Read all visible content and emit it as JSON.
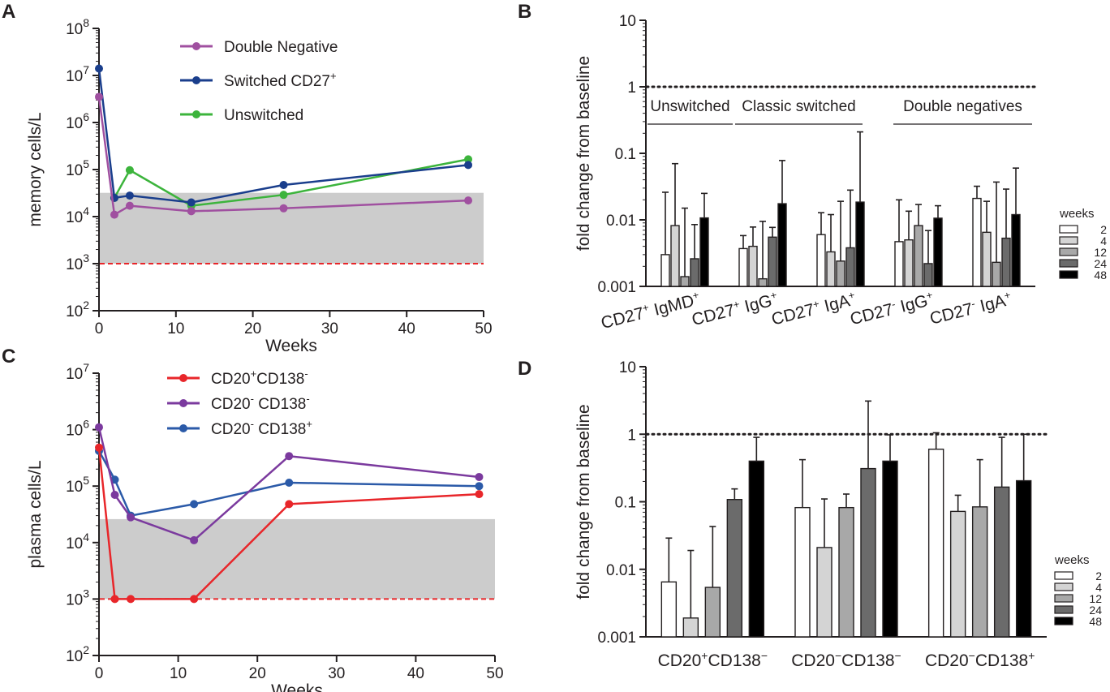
{
  "chart_data": [
    {
      "panel": "A",
      "type": "line",
      "xlabel": "Weeks",
      "ylabel": "memory cells/L",
      "yscale": "log",
      "xlim": [
        0,
        50
      ],
      "ylim": [
        100,
        100000000
      ],
      "xticks": [
        "0",
        "10",
        "20",
        "30",
        "40",
        "50"
      ],
      "yticks": [
        {
          "base": "10",
          "exp": "8"
        },
        {
          "base": "10",
          "exp": "7"
        },
        {
          "base": "10",
          "exp": "6"
        },
        {
          "base": "10",
          "exp": "5"
        },
        {
          "base": "10",
          "exp": "4"
        },
        {
          "base": "10",
          "exp": "3"
        },
        {
          "base": "10",
          "exp": "2"
        }
      ],
      "reference_band": [
        1000,
        32000
      ],
      "reference_line": 1000,
      "series": [
        {
          "name": "Double Negative",
          "color": "#a050a0",
          "legend": {
            "text": "Double Negative",
            "sup": ""
          },
          "x": [
            0,
            2,
            4,
            12,
            24,
            48
          ],
          "y": [
            3500000,
            11000,
            17000,
            13000,
            15000,
            22000
          ]
        },
        {
          "name": "Switched CD27+",
          "color": "#1a3e8c",
          "legend": {
            "text": "Switched CD27",
            "sup": "+"
          },
          "x": [
            0,
            2,
            4,
            12,
            24,
            48
          ],
          "y": [
            14000000,
            25000,
            28000,
            20000,
            47000,
            125000
          ]
        },
        {
          "name": "Unswitched",
          "color": "#3cb43c",
          "legend": {
            "text": "Unswitched",
            "sup": ""
          },
          "x": [
            2,
            4,
            12,
            24,
            48
          ],
          "y": [
            25000,
            97000,
            17000,
            29000,
            165000
          ]
        }
      ]
    },
    {
      "panel": "B",
      "type": "bar",
      "ylabel": "fold change from baseline",
      "yscale": "log",
      "ylim": [
        0.001,
        10
      ],
      "yticks": [
        "10",
        "1",
        "0.1",
        "0.01",
        "0.001"
      ],
      "reference_line": 1,
      "groups": [
        "Unswitched",
        "Classic switched",
        "Double negatives"
      ],
      "categories": [
        {
          "text": "CD27",
          "sup1": "+",
          "mid": " IgMD",
          "sup2": "+"
        },
        {
          "text": "CD27",
          "sup1": "+",
          "mid": " IgG",
          "sup2": "+"
        },
        {
          "text": "CD27",
          "sup1": "+",
          "mid": " IgA",
          "sup2": "+"
        },
        {
          "text": "CD27",
          "sup1": "-",
          "mid": " IgG",
          "sup2": "+"
        },
        {
          "text": "CD27",
          "sup1": "-",
          "mid": " IgA",
          "sup2": "+"
        }
      ],
      "legend_title": "weeks",
      "series": [
        {
          "name": "2",
          "color": "#ffffff",
          "values": [
            0.003,
            0.0037,
            0.006,
            0.0047,
            0.021
          ],
          "errors": [
            0.026,
            0.0058,
            0.0128,
            0.02,
            0.032
          ]
        },
        {
          "name": "4",
          "color": "#d4d4d4",
          "values": [
            0.0082,
            0.004,
            0.0033,
            0.005,
            0.0065
          ],
          "errors": [
            0.07,
            0.0078,
            0.012,
            0.0135,
            0.019
          ]
        },
        {
          "name": "12",
          "color": "#a8a8a8",
          "values": [
            0.0014,
            0.0013,
            0.0024,
            0.0082,
            0.0023
          ],
          "errors": [
            0.015,
            0.0095,
            0.019,
            0.017,
            0.037
          ]
        },
        {
          "name": "24",
          "color": "#6b6b6b",
          "values": [
            0.0026,
            0.0055,
            0.0038,
            0.0022,
            0.0053
          ],
          "errors": [
            0.0085,
            0.0077,
            0.028,
            0.0069,
            0.029
          ]
        },
        {
          "name": "48",
          "color": "#000000",
          "values": [
            0.0107,
            0.0175,
            0.0185,
            0.0106,
            0.012
          ],
          "errors": [
            0.025,
            0.078,
            0.21,
            0.0163,
            0.06
          ]
        }
      ]
    },
    {
      "panel": "C",
      "type": "line",
      "xlabel": "Weeks",
      "ylabel": "plasma cells/L",
      "yscale": "log",
      "xlim": [
        0,
        50
      ],
      "ylim": [
        100,
        10000000
      ],
      "xticks": [
        "0",
        "10",
        "20",
        "30",
        "40",
        "50"
      ],
      "yticks": [
        {
          "base": "10",
          "exp": "7"
        },
        {
          "base": "10",
          "exp": "6"
        },
        {
          "base": "10",
          "exp": "5"
        },
        {
          "base": "10",
          "exp": "4"
        },
        {
          "base": "10",
          "exp": "3"
        },
        {
          "base": "10",
          "exp": "2"
        }
      ],
      "reference_band": [
        1000,
        26000
      ],
      "reference_line": 1000,
      "series": [
        {
          "name": "CD20+CD138-",
          "color": "#e8262a",
          "legend": {
            "a": "CD20",
            "sa": "+",
            "b": "CD138",
            "sb": "-"
          },
          "x": [
            0,
            2,
            4,
            12,
            24,
            48
          ],
          "y": [
            480000,
            1000,
            1000,
            1000,
            48000,
            72000
          ]
        },
        {
          "name": "CD20-CD138-",
          "color": "#7b3a9e",
          "legend": {
            "a": "CD20",
            "sa": "-",
            "b": " CD138",
            "sb": "-"
          },
          "x": [
            0,
            2,
            4,
            12,
            24,
            48
          ],
          "y": [
            1100000,
            70000,
            28000,
            11000,
            340000,
            145000
          ]
        },
        {
          "name": "CD20-CD138+",
          "color": "#2b5aa8",
          "legend": {
            "a": "CD20",
            "sa": "-",
            "b": " CD138",
            "sb": "+"
          },
          "x": [
            0,
            2,
            4,
            12,
            24,
            48
          ],
          "y": [
            420000,
            130000,
            30000,
            48000,
            115000,
            100000
          ]
        }
      ]
    },
    {
      "panel": "D",
      "type": "bar",
      "ylabel": "fold change from baseline",
      "yscale": "log",
      "ylim": [
        0.001,
        10
      ],
      "yticks": [
        "10",
        "1",
        "0.1",
        "0.01",
        "0.001"
      ],
      "reference_line": 1,
      "categories": [
        {
          "a": "CD20",
          "sa": "+",
          "b": "CD138",
          "sb": "−"
        },
        {
          "a": "CD20",
          "sa": "−",
          "b": "CD138",
          "sb": "−"
        },
        {
          "a": "CD20",
          "sa": "−",
          "b": "CD138",
          "sb": "+"
        }
      ],
      "legend_title": "weeks",
      "series": [
        {
          "name": "2",
          "color": "#ffffff",
          "values": [
            0.0065,
            0.082,
            0.6
          ],
          "errors": [
            0.029,
            0.42,
            1.05
          ]
        },
        {
          "name": "4",
          "color": "#d4d4d4",
          "values": [
            0.0019,
            0.021,
            0.072
          ],
          "errors": [
            0.019,
            0.11,
            0.125
          ]
        },
        {
          "name": "12",
          "color": "#a8a8a8",
          "values": [
            0.0054,
            0.082,
            0.084
          ],
          "errors": [
            0.043,
            0.13,
            0.42
          ]
        },
        {
          "name": "24",
          "color": "#6b6b6b",
          "values": [
            0.108,
            0.31,
            0.165
          ],
          "errors": [
            0.155,
            3.1,
            0.9
          ]
        },
        {
          "name": "48",
          "color": "#000000",
          "values": [
            0.4,
            0.4,
            0.205
          ],
          "errors": [
            0.9,
            0.98,
            1.0
          ]
        }
      ]
    }
  ]
}
